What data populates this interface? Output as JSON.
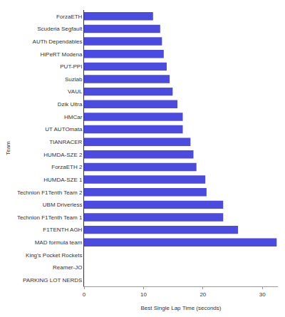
{
  "chart_data": {
    "type": "bar",
    "orientation": "horizontal",
    "x_label": "Best Single Lap Time (seconds)",
    "y_label": "Team",
    "categories": [
      "ForzaETH",
      "Scuderia Segfault",
      "AUTh Dependables",
      "HiPeRT Modena",
      "PUT-PPI",
      "Suzlab",
      "VAUL",
      "Dzik Ultra",
      "HMCar",
      "UT AUTOmata",
      "TIANRACER",
      "HUMDA-SZE 2",
      "ForzaETH 2",
      "HUMDA-SZE 1",
      "Technion F1Tenth Team 2",
      "UBM Driverless",
      "Technion F1Tenth Team 1",
      "F1TENTH AGH",
      "MAD formula team",
      "King's Pocket Rockets",
      "Reamer-JO",
      "PARKING LOT NERDS"
    ],
    "values": [
      11.6,
      12.8,
      13.1,
      13.4,
      13.9,
      14.4,
      14.9,
      15.7,
      16.6,
      16.6,
      17.9,
      18.4,
      18.9,
      20.4,
      20.6,
      23.4,
      23.4,
      25.9,
      32.4,
      null,
      null,
      null
    ],
    "color": "#4b4bdf",
    "xlim": [
      0,
      32.6
    ],
    "xticks": [
      0,
      10,
      20,
      30
    ],
    "grid": false
  }
}
